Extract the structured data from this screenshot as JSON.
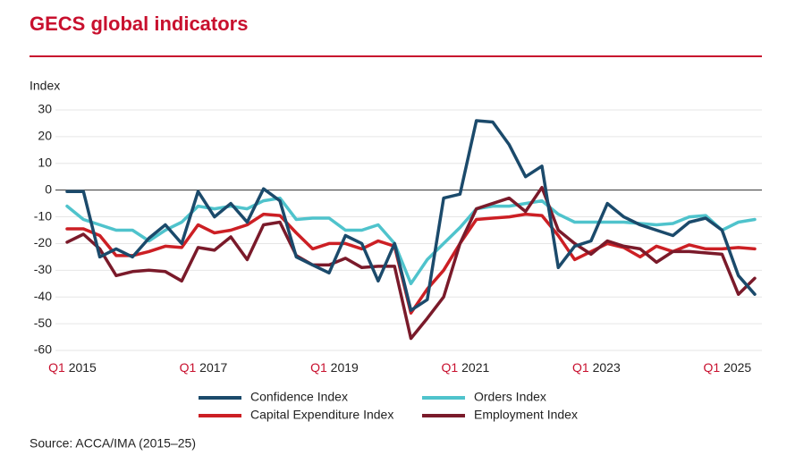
{
  "chart_data": {
    "type": "line",
    "title": "GECS global indicators",
    "y_label": "Index",
    "source": "Source: ACCA/IMA (2015–25)",
    "categories": [
      "Q1 2015",
      null,
      null,
      null,
      null,
      null,
      null,
      null,
      "Q1 2017",
      null,
      null,
      null,
      null,
      null,
      null,
      null,
      "Q1 2019",
      null,
      null,
      null,
      null,
      null,
      null,
      null,
      "Q1 2021",
      null,
      null,
      null,
      null,
      null,
      null,
      null,
      "Q1 2023",
      null,
      null,
      null,
      null,
      null,
      null,
      null,
      "Q1 2025",
      null,
      null
    ],
    "ylim": [
      -60,
      30
    ],
    "yticks": [
      -60,
      -50,
      -40,
      -30,
      -20,
      -10,
      0,
      10,
      20,
      30
    ],
    "series": [
      {
        "name": "Confidence Index",
        "color": "#1b4a6b",
        "values": [
          -0.5,
          -0.5,
          -25,
          -22,
          -25,
          -18,
          -13,
          -20,
          -0.5,
          -10,
          -5,
          -12,
          0.5,
          -4,
          -25,
          -28,
          -31,
          -17,
          -20,
          -34,
          -20,
          -45,
          -41,
          -3,
          -1.5,
          26,
          25.5,
          17,
          5,
          9,
          -29,
          -21,
          -19,
          -5,
          -10,
          -13,
          -15,
          -17,
          -12,
          -10.5,
          -15,
          -32,
          -39
        ]
      },
      {
        "name": "Orders Index",
        "color": "#4fc3cc",
        "values": [
          -6,
          -11,
          -13,
          -15,
          -15,
          -19,
          -15,
          -12,
          -6,
          -7,
          -6,
          -7,
          -4,
          -3,
          -11,
          -10.5,
          -10.5,
          -15,
          -15,
          -13,
          -20,
          -35,
          -26,
          -20,
          -14,
          -7,
          -6,
          -6,
          -5,
          -4,
          -9,
          -12,
          -12,
          -12,
          -12,
          -12.5,
          -13,
          -12.5,
          -10,
          -9.5,
          -15,
          -12,
          -11
        ]
      },
      {
        "name": "Capital Expenditure Index",
        "color": "#cc1f24",
        "values": [
          -14.5,
          -14.5,
          -17,
          -24.5,
          -24.5,
          -23,
          -21,
          -21.5,
          -13,
          -16,
          -15,
          -13,
          -9,
          -9.5,
          -16,
          -22,
          -20,
          -20,
          -22,
          -19,
          -21,
          -46,
          -37,
          -30,
          -20,
          -11,
          -10.5,
          -10,
          -9,
          -9.5,
          -17,
          -26,
          -23,
          -20,
          -21.5,
          -25,
          -21,
          -23,
          -20.5,
          -22,
          -22,
          -21.5,
          -22
        ]
      },
      {
        "name": "Employment Index",
        "color": "#7a1a2a",
        "values": [
          -19.5,
          -16.5,
          -22,
          -32,
          -30.5,
          -30,
          -30.5,
          -34,
          -21.5,
          -22.5,
          -17.5,
          -26,
          -13,
          -12,
          -24.5,
          -28,
          -28,
          -25.5,
          -29,
          -28.5,
          -28.5,
          -55.5,
          -48,
          -40,
          -20,
          -7,
          -5,
          -3,
          -8,
          1,
          -15,
          -20,
          -24,
          -19,
          -21,
          -22,
          -27,
          -23,
          -23,
          -23.5,
          -24,
          -39,
          -33
        ]
      }
    ]
  }
}
